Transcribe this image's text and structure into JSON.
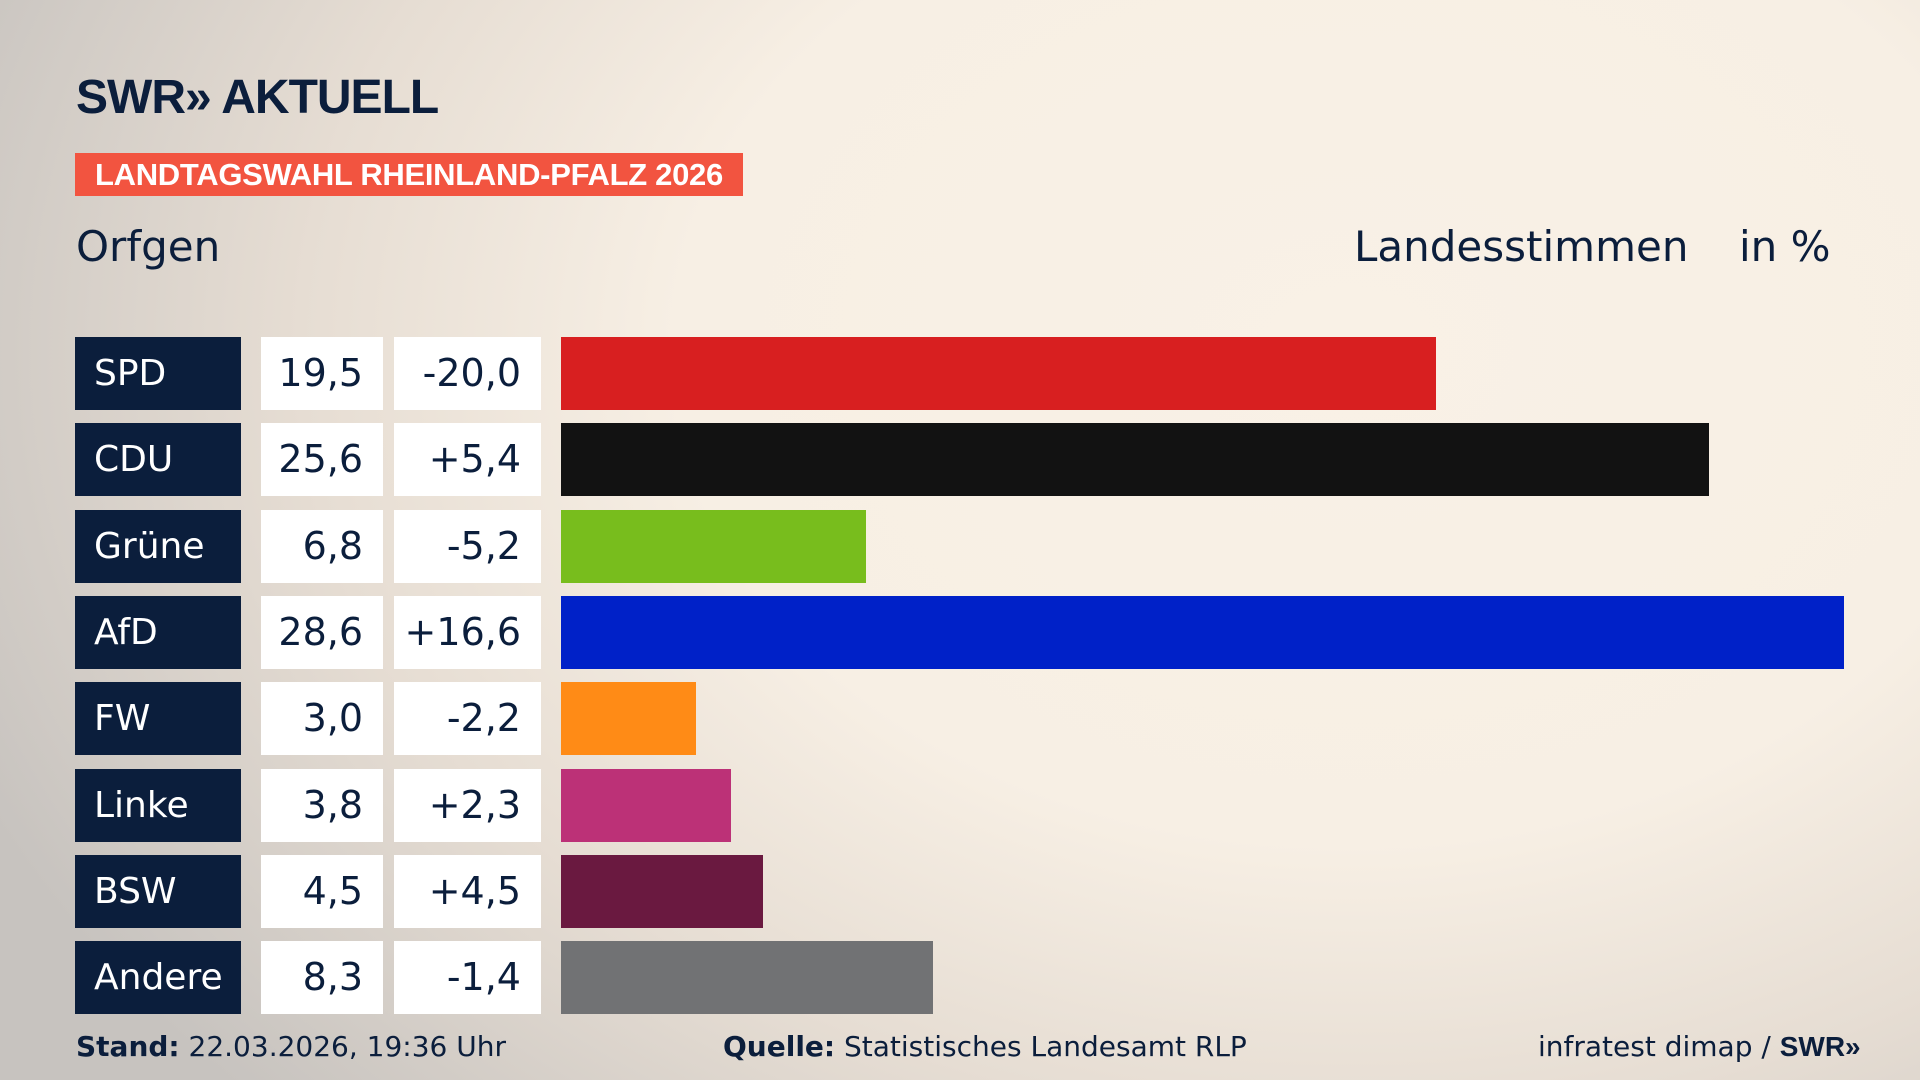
{
  "header": {
    "logo": "SWR» AKTUELL",
    "banner": "LANDTAGSWAHL RHEINLAND-PFALZ 2026",
    "location": "Orfgen",
    "vote_type": "Landesstimmen",
    "unit": "in %"
  },
  "chart_data": {
    "type": "bar",
    "orientation": "horizontal",
    "categories": [
      "SPD",
      "CDU",
      "Grüne",
      "AfD",
      "FW",
      "Linke",
      "BSW",
      "Andere"
    ],
    "values": [
      19.5,
      25.6,
      6.8,
      28.6,
      3.0,
      3.8,
      4.5,
      8.3
    ],
    "values_label": [
      "19,5",
      "25,6",
      "6,8",
      "28,6",
      "3,0",
      "3,8",
      "4,5",
      "8,3"
    ],
    "diff_label": [
      "-20,0",
      "+5,4",
      "-5,2",
      "+16,6",
      "-2,2",
      "+2,3",
      "+4,5",
      "-1,4"
    ],
    "colors": [
      "#d81f20",
      "#121212",
      "#78bd1d",
      "#0021c8",
      "#ff8b16",
      "#bc3177",
      "#6a1940",
      "#717274"
    ],
    "xlim": [
      0,
      28.6
    ]
  },
  "footer": {
    "stand_label": "Stand:",
    "stand_value": "22.03.2026, 19:36 Uhr",
    "source_label": "Quelle:",
    "source_value": "Statistisches Landesamt RLP",
    "credit": "infratest dimap /",
    "credit_logo": "SWR»"
  }
}
